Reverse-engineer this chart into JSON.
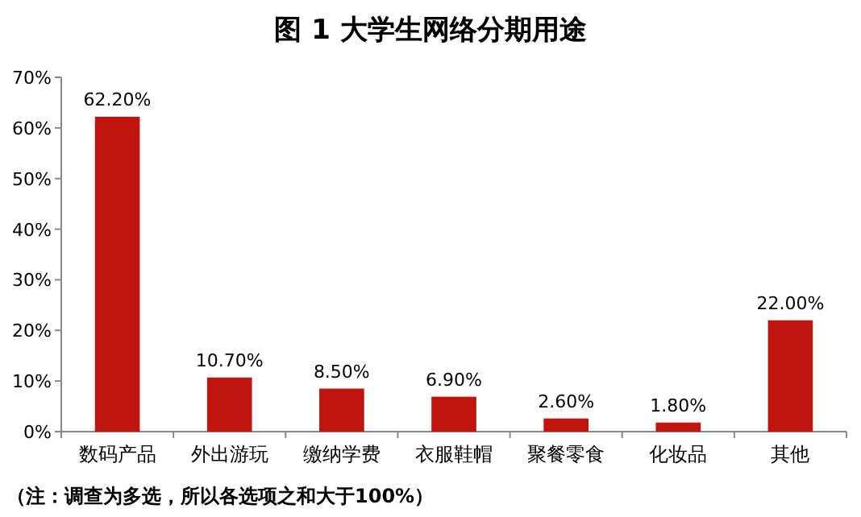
{
  "chart_data": {
    "type": "bar",
    "title": "图 1  大学生网络分期用途",
    "categories": [
      "数码产品",
      "外出游玩",
      "缴纳学费",
      "衣服鞋帽",
      "聚餐零食",
      "化妆品",
      "其他"
    ],
    "values": [
      62.2,
      10.7,
      8.5,
      6.9,
      2.6,
      1.8,
      22.0
    ],
    "value_labels": [
      "62.20%",
      "10.70%",
      "8.50%",
      "6.90%",
      "2.60%",
      "1.80%",
      "22.00%"
    ],
    "color": "#c0150f",
    "ylim": [
      0,
      70
    ],
    "yticks": [
      {
        "value": 0,
        "label": "0%"
      },
      {
        "value": 10,
        "label": "10%"
      },
      {
        "value": 20,
        "label": "20%"
      },
      {
        "value": 30,
        "label": "30%"
      },
      {
        "value": 40,
        "label": "40%"
      },
      {
        "value": 50,
        "label": "50%"
      },
      {
        "value": 60,
        "label": "60%"
      },
      {
        "value": 70,
        "label": "70%"
      }
    ],
    "grid": false,
    "annotations": [
      "（注：调查为多选，所以各选项之和大于100%）"
    ]
  }
}
